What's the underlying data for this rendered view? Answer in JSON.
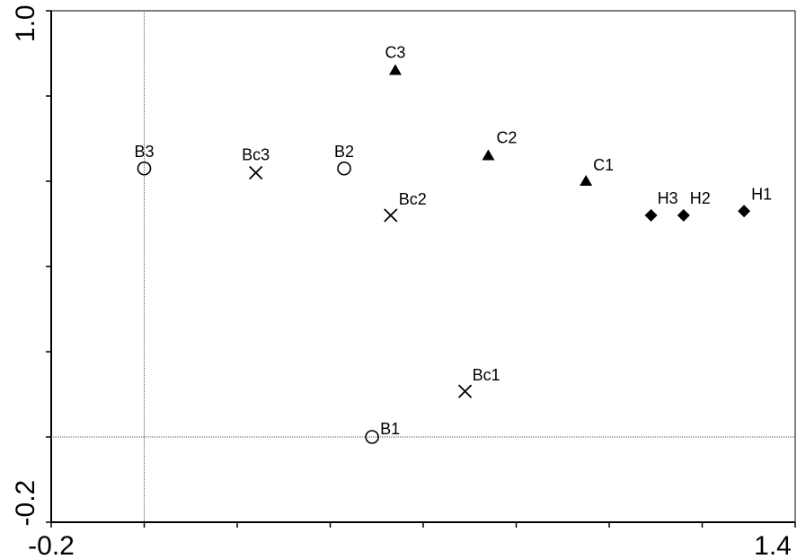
{
  "chart_data": {
    "type": "scatter",
    "title": "",
    "xlabel": "",
    "ylabel": "",
    "xlim": [
      -0.2,
      1.4
    ],
    "ylim": [
      -0.2,
      1.0
    ],
    "x_tick_labels": [
      "-0.2",
      "1.4"
    ],
    "y_tick_labels": [
      "-0.2",
      "1.0"
    ],
    "reference_lines": {
      "x": 0.0,
      "y": 0.0
    },
    "grid": false,
    "legend": "none",
    "colors": {
      "marker": "#000000",
      "reference_line": "#555555"
    },
    "series": [
      {
        "marker": "circle-open",
        "points": [
          {
            "label": "B1",
            "x": 0.49,
            "y": 0.0
          },
          {
            "label": "B2",
            "x": 0.43,
            "y": 0.63
          },
          {
            "label": "B3",
            "x": 0.0,
            "y": 0.63
          }
        ]
      },
      {
        "marker": "x",
        "points": [
          {
            "label": "Bc1",
            "x": 0.69,
            "y": 0.107
          },
          {
            "label": "Bc2",
            "x": 0.53,
            "y": 0.52
          },
          {
            "label": "Bc3",
            "x": 0.24,
            "y": 0.62
          }
        ]
      },
      {
        "marker": "triangle-filled",
        "points": [
          {
            "label": "C1",
            "x": 0.95,
            "y": 0.6
          },
          {
            "label": "C2",
            "x": 0.74,
            "y": 0.66
          },
          {
            "label": "C3",
            "x": 0.54,
            "y": 0.86
          }
        ]
      },
      {
        "marker": "diamond-filled",
        "points": [
          {
            "label": "H1",
            "x": 1.29,
            "y": 0.53
          },
          {
            "label": "H2",
            "x": 1.16,
            "y": 0.52
          },
          {
            "label": "H3",
            "x": 1.09,
            "y": 0.52
          }
        ]
      }
    ]
  }
}
